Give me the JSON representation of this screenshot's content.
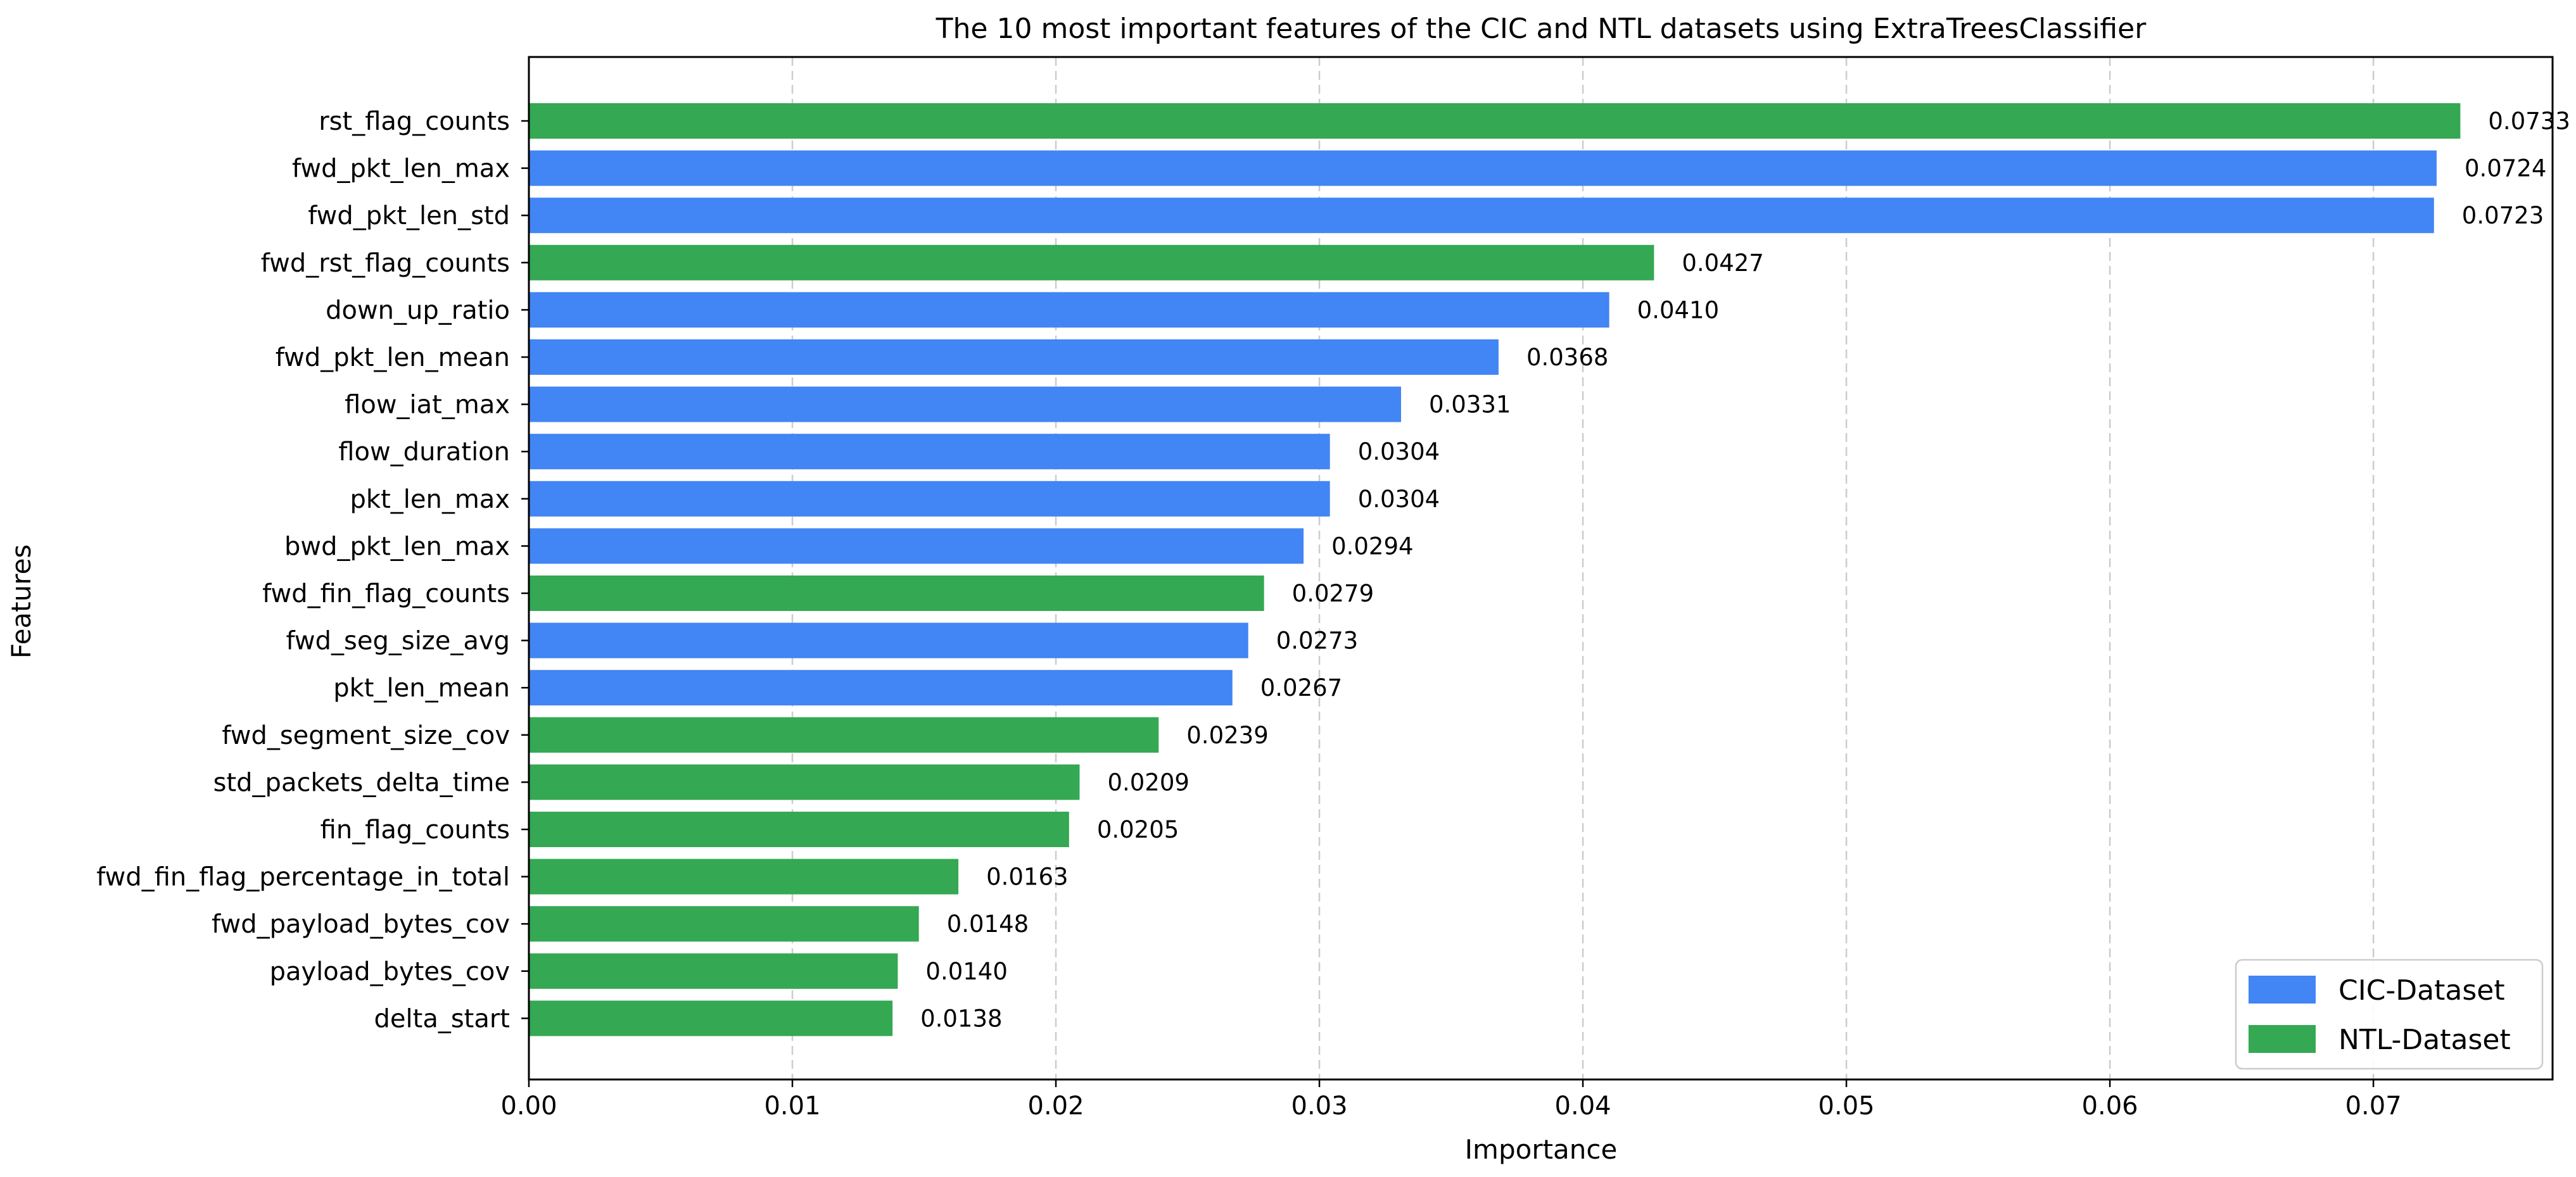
{
  "chart_data": {
    "type": "bar",
    "orientation": "horizontal",
    "title": "The 10 most important features of the CIC and NTL datasets using ExtraTreesClassifier",
    "xlabel": "Importance",
    "ylabel": "Features",
    "xlim": [
      0,
      0.0768
    ],
    "xticks": [
      0.0,
      0.01,
      0.02,
      0.03,
      0.04,
      0.05,
      0.06,
      0.07
    ],
    "xtick_labels": [
      "0.00",
      "0.01",
      "0.02",
      "0.03",
      "0.04",
      "0.05",
      "0.06",
      "0.07"
    ],
    "grid": "x-dashed",
    "legend_position": "bottom-right",
    "series": [
      {
        "name": "CIC-Dataset",
        "color": "#4285f4"
      },
      {
        "name": "NTL-Dataset",
        "color": "#34a853"
      }
    ],
    "bars": [
      {
        "feature": "rst_flag_counts",
        "value": 0.0733,
        "label": "0.0733",
        "series": "NTL-Dataset"
      },
      {
        "feature": "fwd_pkt_len_max",
        "value": 0.0724,
        "label": "0.0724",
        "series": "CIC-Dataset"
      },
      {
        "feature": "fwd_pkt_len_std",
        "value": 0.0723,
        "label": "0.0723",
        "series": "CIC-Dataset"
      },
      {
        "feature": "fwd_rst_flag_counts",
        "value": 0.0427,
        "label": "0.0427",
        "series": "NTL-Dataset"
      },
      {
        "feature": "down_up_ratio",
        "value": 0.041,
        "label": "0.0410",
        "series": "CIC-Dataset"
      },
      {
        "feature": "fwd_pkt_len_mean",
        "value": 0.0368,
        "label": "0.0368",
        "series": "CIC-Dataset"
      },
      {
        "feature": "flow_iat_max",
        "value": 0.0331,
        "label": "0.0331",
        "series": "CIC-Dataset"
      },
      {
        "feature": "flow_duration",
        "value": 0.0304,
        "label": "0.0304",
        "series": "CIC-Dataset"
      },
      {
        "feature": "pkt_len_max",
        "value": 0.0304,
        "label": "0.0304",
        "series": "CIC-Dataset"
      },
      {
        "feature": "bwd_pkt_len_max",
        "value": 0.0294,
        "label": "0.0294",
        "series": "CIC-Dataset"
      },
      {
        "feature": "fwd_fin_flag_counts",
        "value": 0.0279,
        "label": "0.0279",
        "series": "NTL-Dataset"
      },
      {
        "feature": "fwd_seg_size_avg",
        "value": 0.0273,
        "label": "0.0273",
        "series": "CIC-Dataset"
      },
      {
        "feature": "pkt_len_mean",
        "value": 0.0267,
        "label": "0.0267",
        "series": "CIC-Dataset"
      },
      {
        "feature": "fwd_segment_size_cov",
        "value": 0.0239,
        "label": "0.0239",
        "series": "NTL-Dataset"
      },
      {
        "feature": "std_packets_delta_time",
        "value": 0.0209,
        "label": "0.0209",
        "series": "NTL-Dataset"
      },
      {
        "feature": "fin_flag_counts",
        "value": 0.0205,
        "label": "0.0205",
        "series": "NTL-Dataset"
      },
      {
        "feature": "fwd_fin_flag_percentage_in_total",
        "value": 0.0163,
        "label": "0.0163",
        "series": "NTL-Dataset"
      },
      {
        "feature": "fwd_payload_bytes_cov",
        "value": 0.0148,
        "label": "0.0148",
        "series": "NTL-Dataset"
      },
      {
        "feature": "payload_bytes_cov",
        "value": 0.014,
        "label": "0.0140",
        "series": "NTL-Dataset"
      },
      {
        "feature": "delta_start",
        "value": 0.0138,
        "label": "0.0138",
        "series": "NTL-Dataset"
      }
    ]
  }
}
